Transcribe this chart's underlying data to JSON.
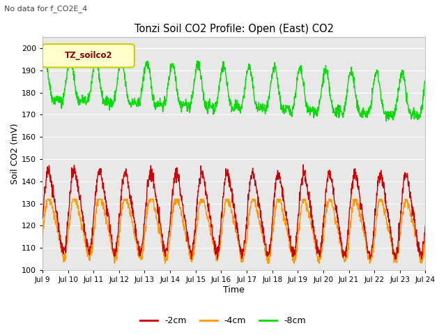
{
  "title": "Tonzi Soil CO2 Profile: Open (East) CO2",
  "subtitle": "No data for f_CO2E_4",
  "xlabel": "Time",
  "ylabel": "Soil CO2 (mV)",
  "ylim": [
    100,
    205
  ],
  "yticks": [
    100,
    110,
    120,
    130,
    140,
    150,
    160,
    170,
    180,
    190,
    200
  ],
  "xtick_labels": [
    "Jul 9",
    "Jul 10",
    "Jul 11",
    "Jul 12",
    "Jul 13",
    "Jul 14",
    "Jul 15",
    "Jul 16",
    "Jul 17",
    "Jul 18",
    "Jul 19",
    "Jul 20",
    "Jul 21",
    "Jul 22",
    "Jul 23",
    "Jul 24"
  ],
  "bg_color": "#e8e8e8",
  "fig_bg_color": "#ffffff",
  "line_2cm_color": "#cc0000",
  "line_4cm_color": "#ff9900",
  "line_8cm_color": "#00dd00",
  "legend_box_fill": "#ffffcc",
  "legend_box_edge": "#cccc00",
  "legend_box_label": "TZ_soilco2",
  "legend_label_color": "#880000",
  "line_width": 1.0,
  "n_points": 1500
}
